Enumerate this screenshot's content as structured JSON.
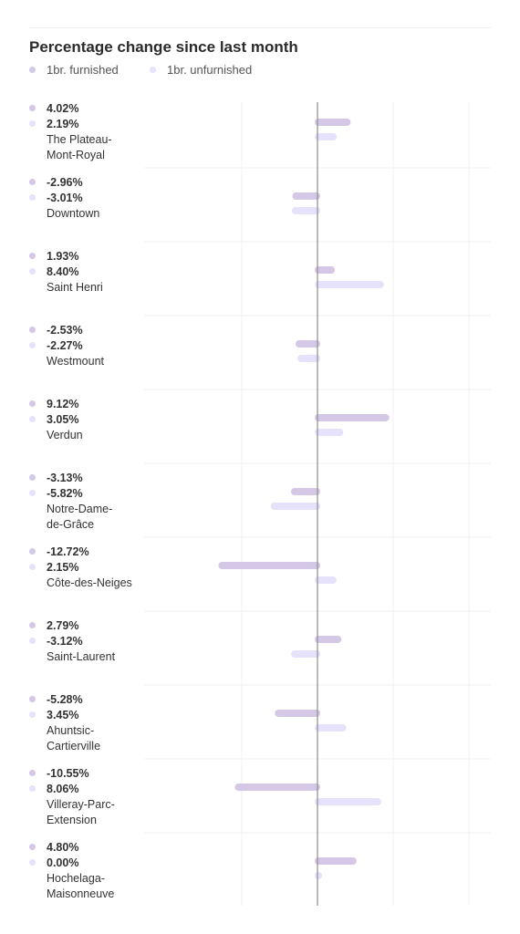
{
  "chart_data": {
    "type": "bar",
    "orientation": "horizontal",
    "title": "Percentage change since last month",
    "legend_position": "top-left",
    "grid": true,
    "xlim": [
      -20,
      20
    ],
    "categories": [
      [
        "The Plateau-",
        "Mont-Royal"
      ],
      [
        "Downtown"
      ],
      [
        "Saint Henri"
      ],
      [
        "Westmount"
      ],
      [
        "Verdun"
      ],
      [
        "Notre-Dame-",
        "de-Grâce"
      ],
      [
        "Côte-des-Neiges"
      ],
      [
        "Saint-Laurent"
      ],
      [
        "Ahuntsic-",
        "Cartierville"
      ],
      [
        "Villeray-Parc-",
        "Extension"
      ],
      [
        "Hochelaga-",
        "Maisonneuve"
      ]
    ],
    "series": [
      {
        "name": "1br. furnished",
        "color": "#d4c8e6",
        "values": [
          4.02,
          -2.96,
          1.93,
          -2.53,
          9.12,
          -3.13,
          -12.72,
          2.79,
          -5.28,
          -10.55,
          4.8
        ],
        "labels": [
          "4.02%",
          "-2.96%",
          "1.93%",
          "-2.53%",
          "9.12%",
          "-3.13%",
          "-12.72%",
          "2.79%",
          "-5.28%",
          "-10.55%",
          "4.80%"
        ]
      },
      {
        "name": "1br. unfurnished",
        "color": "#e6e2fb",
        "values": [
          2.19,
          -3.01,
          8.4,
          -2.27,
          3.05,
          -5.82,
          2.15,
          -3.12,
          3.45,
          8.06,
          0.0
        ],
        "labels": [
          "2.19%",
          "-3.01%",
          "8.40%",
          "-2.27%",
          "3.05%",
          "-5.82%",
          "2.15%",
          "-3.12%",
          "3.45%",
          "8.06%",
          "0.00%"
        ]
      }
    ]
  }
}
